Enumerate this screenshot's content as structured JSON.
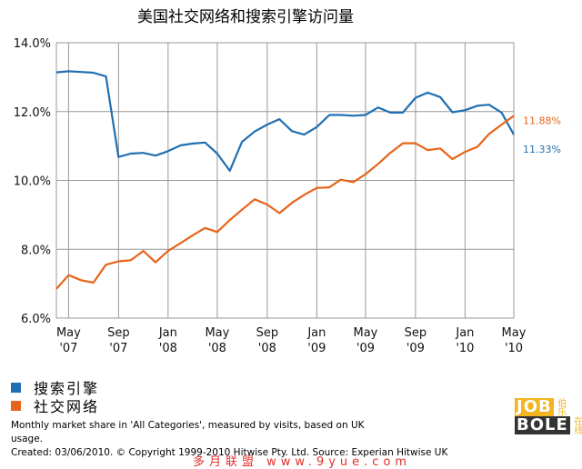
{
  "chart_data": {
    "type": "line",
    "title": "美国社交网络和搜索引擎访问量",
    "yticks": [
      "14.0%",
      "12.0%",
      "10.0%",
      "8.0%",
      "6.0%"
    ],
    "ylim": [
      6.0,
      14.0
    ],
    "xticks": [
      {
        "month": "May",
        "year": "'07"
      },
      {
        "month": "Sep",
        "year": "'07"
      },
      {
        "month": "Jan",
        "year": "'08"
      },
      {
        "month": "May",
        "year": "'08"
      },
      {
        "month": "Sep",
        "year": "'08"
      },
      {
        "month": "Jan",
        "year": "'09"
      },
      {
        "month": "May",
        "year": "'09"
      },
      {
        "month": "Sep",
        "year": "'09"
      },
      {
        "month": "Jan",
        "year": "'10"
      },
      {
        "month": "May",
        "year": "'10"
      }
    ],
    "x": [
      "2007-04-01",
      "2007-05-01",
      "2007-06-01",
      "2007-07-01",
      "2007-08-01",
      "2007-09-01",
      "2007-10-01",
      "2007-11-01",
      "2007-12-01",
      "2008-01-01",
      "2008-02-01",
      "2008-03-01",
      "2008-04-01",
      "2008-05-01",
      "2008-06-01",
      "2008-07-01",
      "2008-08-01",
      "2008-09-01",
      "2008-10-01",
      "2008-11-01",
      "2008-12-01",
      "2009-01-01",
      "2009-02-01",
      "2009-03-01",
      "2009-04-01",
      "2009-05-01",
      "2009-06-01",
      "2009-07-01",
      "2009-08-01",
      "2009-09-01",
      "2009-10-01",
      "2009-11-01",
      "2009-12-01",
      "2010-01-01",
      "2010-02-01",
      "2010-03-01",
      "2010-04-01",
      "2010-05-01"
    ],
    "grid": true,
    "series": [
      {
        "name": "搜索引擎",
        "color": "#1f6fb2",
        "end_label": "11.33%",
        "values": [
          13.14,
          13.17,
          13.15,
          13.13,
          13.02,
          10.68,
          10.78,
          10.8,
          10.72,
          10.85,
          11.02,
          11.07,
          11.1,
          10.78,
          10.28,
          11.12,
          11.42,
          11.62,
          11.78,
          11.43,
          11.33,
          11.55,
          11.9,
          11.9,
          11.88,
          11.9,
          12.12,
          11.97,
          11.97,
          12.4,
          12.55,
          12.42,
          11.98,
          12.04,
          12.17,
          12.2,
          11.97,
          11.33
        ]
      },
      {
        "name": "社交网络",
        "color": "#e8641a",
        "end_label": "11.88%",
        "values": [
          6.85,
          7.25,
          7.1,
          7.03,
          7.55,
          7.65,
          7.68,
          7.95,
          7.62,
          7.95,
          8.18,
          8.4,
          8.62,
          8.5,
          8.85,
          9.15,
          9.45,
          9.3,
          9.05,
          9.35,
          9.58,
          9.78,
          9.8,
          10.02,
          9.95,
          10.18,
          10.48,
          10.8,
          11.08,
          11.08,
          10.88,
          10.93,
          10.62,
          10.83,
          10.98,
          11.35,
          11.62,
          11.88
        ]
      }
    ]
  },
  "legend": [
    {
      "label": "搜索引擎",
      "color": "#1f6fb2"
    },
    {
      "label": "社交网络",
      "color": "#e8641a"
    }
  ],
  "footnote": "Monthly market share in 'All Categories', measured by visits, based on UK usage.",
  "credit": "Created: 03/06/2010. © Copyright 1999-2010 Hitwise Pty. Ltd.    Source: Experian Hitwise UK",
  "logo": {
    "top": "JOB",
    "top_small": "伯乐",
    "bottom": "BOLE",
    "bottom_small": "在线"
  },
  "watermark": "多月联盟 www.9yue.com"
}
